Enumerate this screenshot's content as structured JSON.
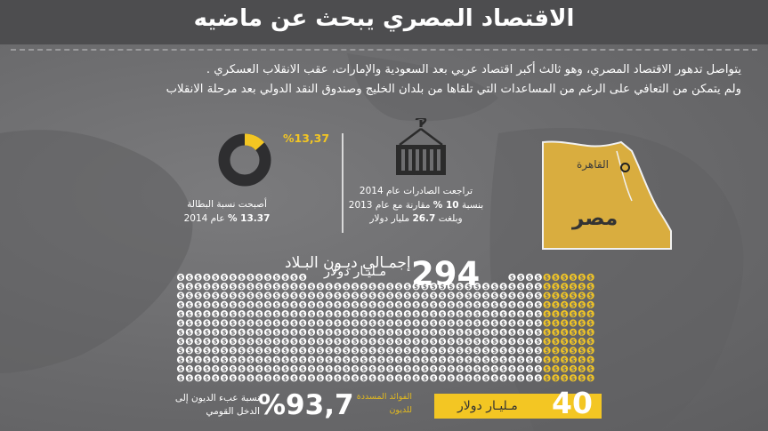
{
  "title": "الاقتصاد المصري يبحث عن ماضيه",
  "intro": {
    "line1": "يتواصل تدهور الاقتصاد المصري، وهو ثالث أكبر اقتصاد عربي بعد السعودية والإمارات، عقب الانقلاب العسكري .",
    "line2": "ولم يتمكن من التعافي على الرغم من المساعدات التي تلقاها من بلدان الخليج وصندوق النقد الدولي بعد مرحلة الانقلاب"
  },
  "unemployment": {
    "value_label": "%13,37",
    "rate_fraction": 0.1337,
    "line1": "أصبحت نسبة البطالة",
    "line2_value": "13.37 %",
    "line2_suffix": "عام 2014"
  },
  "exports": {
    "line1": "تراجعت الصادرات عام 2014",
    "line2_prefix": "بنسبة",
    "line2_value": "10 %",
    "line2_suffix": "مقارنة مع عام 2013",
    "line3_prefix": "وبلغت",
    "line3_value": "26.7",
    "line3_suffix": "مليار دولار"
  },
  "map": {
    "capital": "القاهرة",
    "country": "مصر"
  },
  "debt": {
    "title": "إجمـالي ديـون البـلاد",
    "value": "294",
    "unit": "مـليـار دولار",
    "coin_symbol": "$"
  },
  "interest": {
    "label_line1": "الفوائد المسددة",
    "label_line2": "للديون",
    "value": "40",
    "unit": "مـليـار دولار"
  },
  "ratio": {
    "value": "%93,7",
    "label_line1": "نسبة عبء الديون إلى",
    "label_line2": "الدخل القومي"
  },
  "colors": {
    "accent": "#f3c623",
    "map_fill": "#d9ad3f",
    "dark": "#333333",
    "background": "#6e6e70"
  }
}
